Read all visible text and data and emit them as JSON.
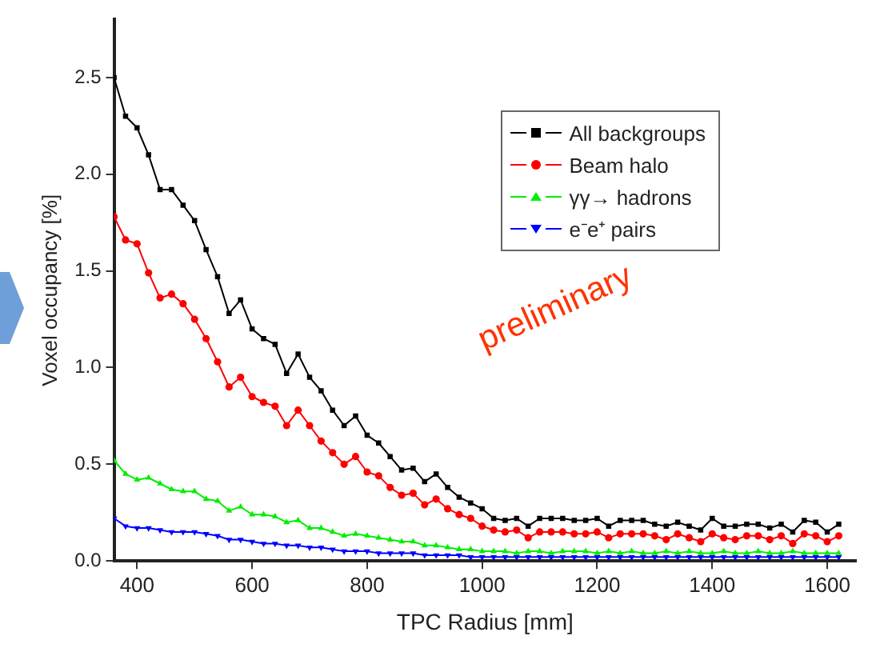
{
  "chart_data": {
    "type": "line",
    "xlabel": "TPC Radius [mm]",
    "ylabel": "Voxel occupancy [%]",
    "x": [
      360,
      380,
      400,
      420,
      440,
      460,
      480,
      500,
      520,
      540,
      560,
      580,
      600,
      620,
      640,
      660,
      680,
      700,
      720,
      740,
      760,
      780,
      800,
      820,
      840,
      860,
      880,
      900,
      920,
      940,
      960,
      980,
      1000,
      1020,
      1040,
      1060,
      1080,
      1100,
      1120,
      1140,
      1160,
      1180,
      1200,
      1220,
      1240,
      1260,
      1280,
      1300,
      1320,
      1340,
      1360,
      1380,
      1400,
      1420,
      1440,
      1460,
      1480,
      1500,
      1520,
      1540,
      1560,
      1580,
      1600,
      1620
    ],
    "series": [
      {
        "name": "All backgroups",
        "color": "#000000",
        "marker": "square",
        "values": [
          2.5,
          2.3,
          2.24,
          2.1,
          1.92,
          1.92,
          1.84,
          1.76,
          1.61,
          1.47,
          1.28,
          1.35,
          1.2,
          1.15,
          1.12,
          0.97,
          1.07,
          0.95,
          0.88,
          0.78,
          0.7,
          0.75,
          0.65,
          0.61,
          0.54,
          0.47,
          0.48,
          0.41,
          0.45,
          0.38,
          0.33,
          0.3,
          0.27,
          0.22,
          0.21,
          0.22,
          0.18,
          0.22,
          0.22,
          0.22,
          0.21,
          0.21,
          0.22,
          0.18,
          0.21,
          0.21,
          0.21,
          0.19,
          0.18,
          0.2,
          0.18,
          0.16,
          0.22,
          0.18,
          0.18,
          0.19,
          0.19,
          0.17,
          0.19,
          0.15,
          0.21,
          0.2,
          0.15,
          0.19
        ]
      },
      {
        "name": "Beam halo",
        "color": "#ff0000",
        "marker": "circle",
        "values": [
          1.78,
          1.66,
          1.64,
          1.49,
          1.36,
          1.38,
          1.33,
          1.25,
          1.15,
          1.03,
          0.9,
          0.95,
          0.85,
          0.82,
          0.8,
          0.7,
          0.78,
          0.7,
          0.62,
          0.56,
          0.5,
          0.54,
          0.46,
          0.44,
          0.38,
          0.34,
          0.35,
          0.29,
          0.32,
          0.27,
          0.24,
          0.22,
          0.18,
          0.16,
          0.15,
          0.16,
          0.12,
          0.15,
          0.15,
          0.15,
          0.14,
          0.14,
          0.15,
          0.12,
          0.14,
          0.14,
          0.14,
          0.13,
          0.11,
          0.14,
          0.12,
          0.1,
          0.14,
          0.12,
          0.11,
          0.13,
          0.13,
          0.11,
          0.13,
          0.09,
          0.14,
          0.13,
          0.1,
          0.13
        ]
      },
      {
        "name": "γγ→ hadrons",
        "color": "#00ee00",
        "marker": "triangle",
        "values": [
          0.52,
          0.45,
          0.42,
          0.43,
          0.4,
          0.37,
          0.36,
          0.36,
          0.32,
          0.31,
          0.26,
          0.28,
          0.24,
          0.24,
          0.23,
          0.2,
          0.21,
          0.17,
          0.17,
          0.15,
          0.13,
          0.14,
          0.13,
          0.12,
          0.11,
          0.1,
          0.1,
          0.08,
          0.08,
          0.07,
          0.06,
          0.06,
          0.05,
          0.05,
          0.05,
          0.04,
          0.05,
          0.05,
          0.04,
          0.05,
          0.05,
          0.05,
          0.04,
          0.05,
          0.04,
          0.05,
          0.04,
          0.04,
          0.05,
          0.04,
          0.05,
          0.04,
          0.04,
          0.05,
          0.04,
          0.04,
          0.05,
          0.04,
          0.04,
          0.05,
          0.04,
          0.04,
          0.04,
          0.04
        ]
      },
      {
        "name": "e⁻e⁺ pairs",
        "color": "#0000ff",
        "marker": "triangle",
        "values": [
          0.22,
          0.18,
          0.17,
          0.17,
          0.16,
          0.15,
          0.15,
          0.15,
          0.14,
          0.13,
          0.11,
          0.11,
          0.1,
          0.09,
          0.09,
          0.08,
          0.08,
          0.07,
          0.07,
          0.06,
          0.05,
          0.05,
          0.05,
          0.04,
          0.04,
          0.04,
          0.04,
          0.03,
          0.03,
          0.03,
          0.03,
          0.02,
          0.02,
          0.02,
          0.02,
          0.02,
          0.02,
          0.02,
          0.02,
          0.02,
          0.02,
          0.02,
          0.02,
          0.02,
          0.02,
          0.02,
          0.02,
          0.02,
          0.02,
          0.02,
          0.02,
          0.02,
          0.02,
          0.02,
          0.02,
          0.02,
          0.02,
          0.02,
          0.02,
          0.02,
          0.02,
          0.02,
          0.02,
          0.02
        ]
      }
    ],
    "xlim": [
      360,
      1650
    ],
    "xticks": [
      400,
      600,
      800,
      1000,
      1200,
      1400,
      1600
    ],
    "ylim": [
      0,
      2.8
    ],
    "yticks": [
      {
        "value": 0,
        "label": "0.0"
      },
      {
        "value": 0.5,
        "label": "0.5"
      },
      {
        "value": 1,
        "label": "1.0"
      },
      {
        "value": 1.5,
        "label": "1.5"
      },
      {
        "value": 2,
        "label": "2.0"
      },
      {
        "value": 2.5,
        "label": "2.5"
      }
    ],
    "legend": "top right",
    "grid": false,
    "line_style": "solid",
    "annotations": [
      "preliminary"
    ]
  }
}
